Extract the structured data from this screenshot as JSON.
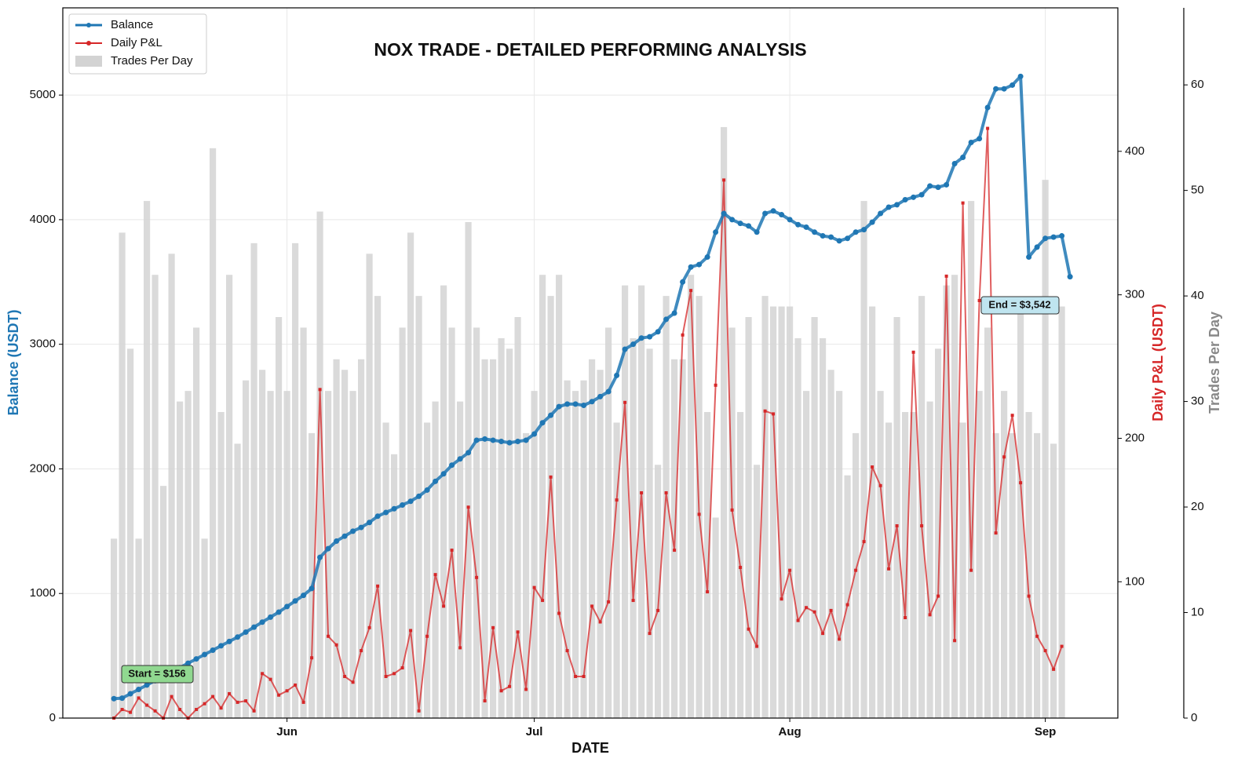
{
  "chart_data": {
    "type": "combo",
    "title": "NOX TRADE - DETAILED PERFORMING ANALYSIS",
    "x_label": "DATE",
    "y_label": "Balance (USDT)",
    "y2_label": "Daily P&L (USDT)",
    "y3_label": "Trades Per Day",
    "xlim": [
      -6.2,
      121.8
    ],
    "xticks": [
      {
        "value": 21,
        "label": "Jun"
      },
      {
        "value": 51,
        "label": "Jul"
      },
      {
        "value": 82,
        "label": "Aug"
      },
      {
        "value": 113,
        "label": "Sep"
      }
    ],
    "ylim": [
      0,
      5700
    ],
    "yticks": [
      0,
      1000,
      2000,
      3000,
      4000,
      5000
    ],
    "y2lim": [
      5,
      500
    ],
    "y2ticks": [
      100,
      200,
      300,
      400
    ],
    "y3lim": [
      0,
      67.3
    ],
    "y3ticks": [
      0,
      10,
      20,
      30,
      40,
      50,
      60
    ],
    "grid": true,
    "legend": "upper left",
    "annotations": [
      "Start = $156",
      "End = $3,542"
    ],
    "series": [
      {
        "name": "Trades Per Day",
        "kind": "bar",
        "axis": "y3",
        "color": "#d3d3d3",
        "x": [
          0,
          1,
          2,
          3,
          4,
          5,
          6,
          7,
          8,
          9,
          10,
          11,
          12,
          13,
          14,
          15,
          16,
          17,
          18,
          19,
          20,
          21,
          22,
          23,
          24,
          25,
          26,
          27,
          28,
          29,
          30,
          31,
          32,
          33,
          34,
          35,
          36,
          37,
          38,
          39,
          40,
          41,
          42,
          43,
          44,
          45,
          46,
          47,
          48,
          49,
          50,
          51,
          52,
          53,
          54,
          55,
          56,
          57,
          58,
          59,
          60,
          61,
          62,
          63,
          64,
          65,
          66,
          67,
          68,
          69,
          70,
          71,
          72,
          73,
          74,
          75,
          76,
          77,
          78,
          79,
          80,
          81,
          82,
          83,
          84,
          85,
          86,
          87,
          88,
          89,
          90,
          91,
          92,
          93,
          94,
          95,
          96,
          97,
          98,
          99,
          100,
          101,
          102,
          103,
          104,
          105,
          106,
          107,
          108,
          109,
          110,
          111,
          112,
          113,
          114,
          115
        ],
        "values": [
          17,
          46,
          35,
          17,
          49,
          42,
          22,
          44,
          30,
          31,
          37,
          17,
          54,
          29,
          42,
          26,
          32,
          45,
          33,
          31,
          38,
          31,
          45,
          37,
          27,
          48,
          31,
          34,
          33,
          31,
          34,
          44,
          40,
          28,
          25,
          37,
          46,
          40,
          28,
          30,
          41,
          37,
          30,
          47,
          37,
          34,
          34,
          36,
          35,
          38,
          27,
          31,
          42,
          40,
          42,
          32,
          31,
          32,
          34,
          33,
          37,
          28,
          41,
          36,
          41,
          35,
          24,
          40,
          34,
          34,
          42,
          40,
          29,
          19,
          56,
          37,
          29,
          38,
          24,
          40,
          39,
          39,
          39,
          36,
          31,
          38,
          36,
          33,
          31,
          23,
          27,
          49,
          39,
          31,
          28,
          38,
          29,
          29,
          40,
          30,
          35,
          41,
          42,
          28,
          49,
          31,
          37,
          27,
          31,
          27,
          39,
          29,
          27,
          51,
          26,
          39
        ]
      },
      {
        "name": "Daily P&L",
        "kind": "line",
        "axis": "y2",
        "color": "#d62728",
        "x": [
          0,
          1,
          2,
          3,
          4,
          5,
          6,
          7,
          8,
          9,
          10,
          11,
          12,
          13,
          14,
          15,
          16,
          17,
          18,
          19,
          20,
          21,
          22,
          23,
          24,
          25,
          26,
          27,
          28,
          29,
          30,
          31,
          32,
          33,
          34,
          35,
          36,
          37,
          38,
          39,
          40,
          41,
          42,
          43,
          44,
          45,
          46,
          47,
          48,
          49,
          50,
          51,
          52,
          53,
          54,
          55,
          56,
          57,
          58,
          59,
          60,
          61,
          62,
          63,
          64,
          65,
          66,
          67,
          68,
          69,
          70,
          71,
          72,
          73,
          74,
          75,
          76,
          77,
          78,
          79,
          80,
          81,
          82,
          83,
          84,
          85,
          86,
          87,
          88,
          89,
          90,
          91,
          92,
          93,
          94,
          95,
          96,
          97,
          98,
          99,
          100,
          101,
          102,
          103,
          104,
          105,
          106,
          107,
          108,
          109,
          110,
          111,
          112,
          113,
          114,
          115
        ],
        "values": [
          5,
          11,
          9,
          19,
          14,
          10,
          5,
          20,
          11,
          5,
          11,
          15,
          20,
          12,
          22,
          16,
          17,
          10,
          36,
          32,
          21,
          24,
          28,
          16,
          47,
          234,
          62,
          56,
          34,
          30,
          52,
          68,
          97,
          34,
          36,
          40,
          66,
          10,
          62,
          105,
          83,
          122,
          54,
          152,
          103,
          17,
          68,
          24,
          27,
          65,
          25,
          96,
          87,
          173,
          78,
          52,
          34,
          34,
          83,
          72,
          86,
          157,
          225,
          87,
          162,
          64,
          80,
          162,
          122,
          272,
          303,
          147,
          93,
          237,
          380,
          150,
          110,
          67,
          55,
          219,
          217,
          88,
          108,
          73,
          82,
          79,
          64,
          80,
          60,
          84,
          108,
          128,
          180,
          167,
          109,
          139,
          75,
          260,
          139,
          77,
          90,
          313,
          59,
          364,
          108,
          296,
          416,
          134,
          187,
          216,
          169,
          90,
          62,
          52,
          39,
          55
        ]
      },
      {
        "name": "Balance",
        "kind": "line",
        "axis": "y",
        "color": "#1f77b4",
        "x": [
          0,
          1,
          2,
          3,
          4,
          5,
          6,
          7,
          8,
          9,
          10,
          11,
          12,
          13,
          14,
          15,
          16,
          17,
          18,
          19,
          20,
          21,
          22,
          23,
          24,
          25,
          26,
          27,
          28,
          29,
          30,
          31,
          32,
          33,
          34,
          35,
          36,
          37,
          38,
          39,
          40,
          41,
          42,
          43,
          44,
          45,
          46,
          47,
          48,
          49,
          50,
          51,
          52,
          53,
          54,
          55,
          56,
          57,
          58,
          59,
          60,
          61,
          62,
          63,
          64,
          65,
          66,
          67,
          68,
          69,
          70,
          71,
          72,
          73,
          74,
          75,
          76,
          77,
          78,
          79,
          80,
          81,
          82,
          83,
          84,
          85,
          86,
          87,
          88,
          89,
          90,
          91,
          92,
          93,
          94,
          95,
          96,
          97,
          98,
          99,
          100,
          101,
          102,
          103,
          104,
          105,
          106,
          107,
          108,
          109,
          110,
          111,
          112,
          113,
          114,
          115,
          116
        ],
        "values": [
          156,
          160,
          195,
          230,
          265,
          300,
          335,
          370,
          405,
          440,
          475,
          510,
          545,
          580,
          615,
          650,
          690,
          730,
          770,
          810,
          850,
          895,
          940,
          985,
          1040,
          1290,
          1360,
          1420,
          1460,
          1500,
          1530,
          1570,
          1620,
          1650,
          1680,
          1710,
          1740,
          1780,
          1830,
          1900,
          1960,
          2030,
          2080,
          2130,
          2230,
          2240,
          2230,
          2220,
          2210,
          2220,
          2230,
          2280,
          2370,
          2430,
          2500,
          2520,
          2520,
          2510,
          2540,
          2580,
          2620,
          2750,
          2960,
          3000,
          3050,
          3060,
          3100,
          3200,
          3250,
          3500,
          3620,
          3640,
          3700,
          3900,
          4050,
          4000,
          3970,
          3950,
          3900,
          4050,
          4070,
          4040,
          4000,
          3960,
          3940,
          3900,
          3870,
          3860,
          3830,
          3850,
          3900,
          3920,
          3980,
          4050,
          4100,
          4120,
          4160,
          4180,
          4200,
          4270,
          4260,
          4280,
          4450,
          4500,
          4620,
          4650,
          4900,
          5050,
          5050,
          5080,
          5150,
          3700,
          3780,
          3850,
          3860,
          3870,
          3542
        ]
      }
    ]
  }
}
